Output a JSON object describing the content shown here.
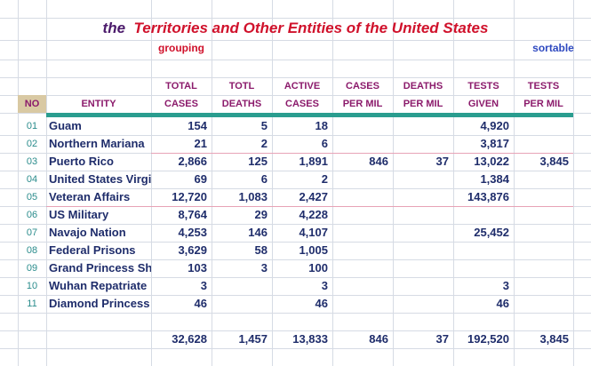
{
  "title": {
    "prefix": "the",
    "main": "Territories and Other Entities of the United States"
  },
  "labels": {
    "grouping": "grouping",
    "sortable": "sortable"
  },
  "headers": {
    "row1": [
      "",
      "",
      "TOTAL",
      "TOTL",
      "ACTIVE",
      "CASES",
      "DEATHS",
      "TESTS",
      "TESTS"
    ],
    "row2": [
      "NO",
      "ENTITY",
      "CASES",
      "DEATHS",
      "CASES",
      "PER MIL",
      "PER MIL",
      "GIVEN",
      "PER MIL"
    ]
  },
  "rows": [
    {
      "no": "01",
      "entity": "Guam",
      "total_cases": "154",
      "total_deaths": "5",
      "active_cases": "18",
      "cases_per_mil": "",
      "deaths_per_mil": "",
      "tests_given": "4,920",
      "tests_per_mil": ""
    },
    {
      "no": "02",
      "entity": "Northern Mariana",
      "total_cases": "21",
      "total_deaths": "2",
      "active_cases": "6",
      "cases_per_mil": "",
      "deaths_per_mil": "",
      "tests_given": "3,817",
      "tests_per_mil": ""
    },
    {
      "no": "03",
      "entity": "Puerto Rico",
      "total_cases": "2,866",
      "total_deaths": "125",
      "active_cases": "1,891",
      "cases_per_mil": "846",
      "deaths_per_mil": "37",
      "tests_given": "13,022",
      "tests_per_mil": "3,845"
    },
    {
      "no": "04",
      "entity": "United States Virgi",
      "total_cases": "69",
      "total_deaths": "6",
      "active_cases": "2",
      "cases_per_mil": "",
      "deaths_per_mil": "",
      "tests_given": "1,384",
      "tests_per_mil": ""
    },
    {
      "no": "05",
      "entity": "Veteran Affairs",
      "total_cases": "12,720",
      "total_deaths": "1,083",
      "active_cases": "2,427",
      "cases_per_mil": "",
      "deaths_per_mil": "",
      "tests_given": "143,876",
      "tests_per_mil": ""
    },
    {
      "no": "06",
      "entity": "US Military",
      "total_cases": "8,764",
      "total_deaths": "29",
      "active_cases": "4,228",
      "cases_per_mil": "",
      "deaths_per_mil": "",
      "tests_given": "",
      "tests_per_mil": ""
    },
    {
      "no": "07",
      "entity": "Navajo Nation",
      "total_cases": "4,253",
      "total_deaths": "146",
      "active_cases": "4,107",
      "cases_per_mil": "",
      "deaths_per_mil": "",
      "tests_given": "25,452",
      "tests_per_mil": ""
    },
    {
      "no": "08",
      "entity": "Federal Prisons",
      "total_cases": "3,629",
      "total_deaths": "58",
      "active_cases": "1,005",
      "cases_per_mil": "",
      "deaths_per_mil": "",
      "tests_given": "",
      "tests_per_mil": ""
    },
    {
      "no": "09",
      "entity": "Grand Princess Shi",
      "total_cases": "103",
      "total_deaths": "3",
      "active_cases": "100",
      "cases_per_mil": "",
      "deaths_per_mil": "",
      "tests_given": "",
      "tests_per_mil": ""
    },
    {
      "no": "10",
      "entity": "Wuhan Repatriate",
      "total_cases": "3",
      "total_deaths": "",
      "active_cases": "3",
      "cases_per_mil": "",
      "deaths_per_mil": "",
      "tests_given": "3",
      "tests_per_mil": ""
    },
    {
      "no": "11",
      "entity": "Diamond Princess",
      "total_cases": "46",
      "total_deaths": "",
      "active_cases": "46",
      "cases_per_mil": "",
      "deaths_per_mil": "",
      "tests_given": "46",
      "tests_per_mil": ""
    }
  ],
  "totals": {
    "total_cases": "32,628",
    "total_deaths": "1,457",
    "active_cases": "13,833",
    "cases_per_mil": "846",
    "deaths_per_mil": "37",
    "tests_given": "192,520",
    "tests_per_mil": "3,845"
  },
  "colors": {
    "title_prefix": "#4b1a6b",
    "title_main": "#d0112b",
    "header": "#8b1a6b",
    "row_number": "#2a8c8c",
    "body_text": "#1f2d6b",
    "divider": "#2a9d8f",
    "sortable": "#2e49c0"
  }
}
